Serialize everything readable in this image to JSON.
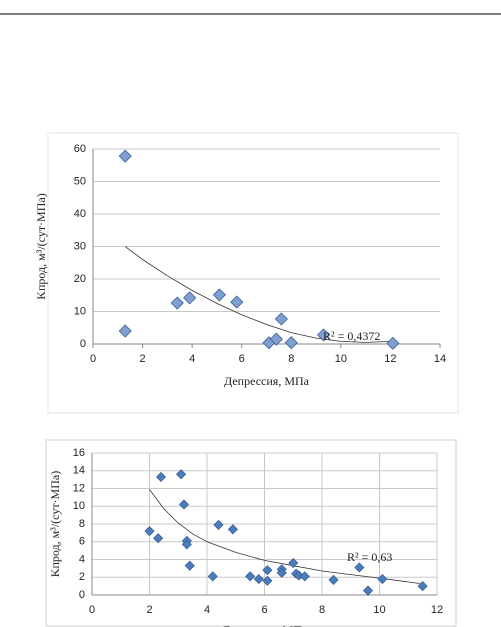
{
  "chart_data": [
    {
      "type": "scatter",
      "xlabel": "Депрессия, МПа",
      "ylabel": "Kпрод, м³/(сут·МПа)",
      "xlim": [
        0,
        14
      ],
      "xticks": [
        0,
        2,
        4,
        6,
        8,
        10,
        12,
        14
      ],
      "ylim": [
        0,
        60
      ],
      "yticks": [
        0,
        10,
        20,
        30,
        40,
        50,
        60
      ],
      "grid": "y",
      "marker": "diamond",
      "x": [
        1.3,
        1.3,
        3.4,
        3.9,
        5.1,
        5.8,
        7.1,
        7.4,
        7.6,
        8.0,
        9.3,
        12.1
      ],
      "series": [
        {
          "color": "#7e9fd0",
          "values": [
            57.8,
            4.0,
            12.6,
            14.2,
            15.1,
            12.9,
            0.4,
            1.5,
            7.7,
            0.4,
            2.8,
            0.2
          ]
        }
      ],
      "trendline": {
        "color": "#333333",
        "x": [
          1.3,
          2,
          3,
          4,
          5,
          6,
          7,
          8,
          9,
          10,
          11,
          12
        ],
        "values": [
          30,
          26,
          21,
          16.5,
          12.5,
          9,
          6,
          3.5,
          1.8,
          0.8,
          0.5,
          0.8
        ]
      },
      "annotation": "R² = 0,4372"
    },
    {
      "type": "scatter",
      "xlabel": "Депрессия, МПа",
      "ylabel": "Kпрод, м³/(сут·МПа)",
      "xlim": [
        0,
        12
      ],
      "xticks": [
        0,
        2,
        4,
        6,
        8,
        10,
        12
      ],
      "ylim": [
        0,
        16
      ],
      "yticks": [
        0,
        2,
        4,
        6,
        8,
        10,
        12,
        14,
        16
      ],
      "grid": "xy",
      "marker": "diamond",
      "x": [
        2.0,
        2.3,
        2.4,
        3.1,
        3.2,
        3.3,
        3.3,
        3.4,
        4.2,
        4.4,
        4.9,
        5.5,
        5.8,
        6.1,
        6.1,
        6.6,
        6.6,
        7.0,
        7.1,
        7.2,
        7.4,
        8.4,
        9.3,
        9.6,
        10.1,
        11.5
      ],
      "series": [
        {
          "color": "#4a7ebb",
          "values": [
            7.2,
            6.4,
            13.3,
            13.6,
            10.2,
            6.1,
            5.7,
            3.3,
            2.1,
            7.9,
            7.4,
            2.1,
            1.8,
            2.8,
            1.6,
            2.9,
            2.5,
            3.6,
            2.4,
            2.2,
            2.1,
            1.7,
            3.1,
            0.5,
            1.8,
            1.0
          ]
        }
      ],
      "trendline": {
        "color": "#333333",
        "x": [
          2,
          2.5,
          3,
          3.5,
          4,
          5,
          6,
          7,
          8,
          9,
          10,
          11.4
        ],
        "values": [
          11.9,
          9.7,
          8.1,
          6.9,
          6.0,
          4.8,
          3.9,
          3.3,
          2.7,
          2.3,
          1.9,
          1.3
        ]
      },
      "annotation": "R² = 0,63"
    }
  ]
}
